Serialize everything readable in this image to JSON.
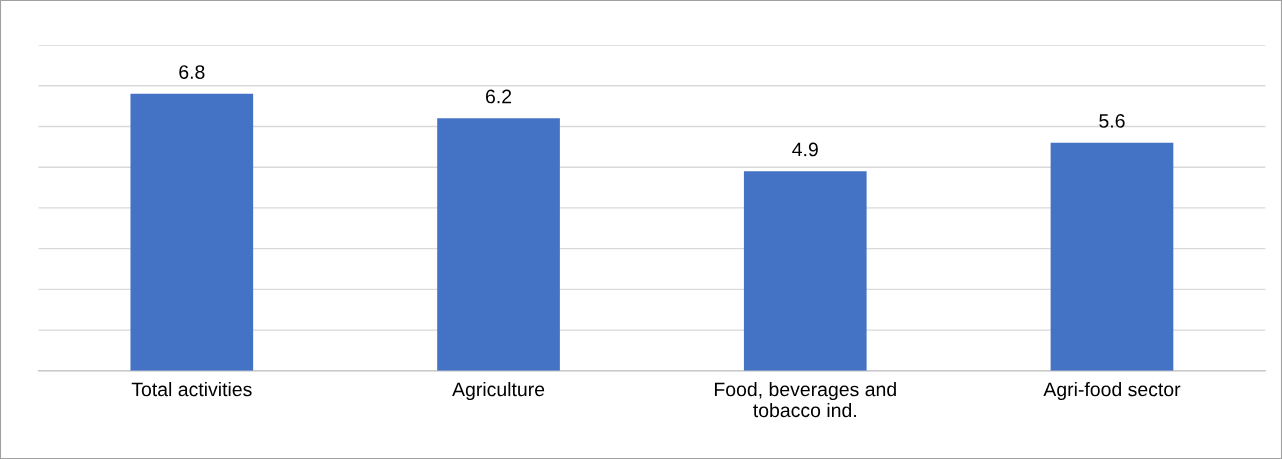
{
  "chart_data": {
    "type": "bar",
    "categories": [
      "Total activities",
      "Agriculture",
      "Food, beverages and\ntobacco ind.",
      "Agri-food sector"
    ],
    "values": [
      6.8,
      6.2,
      4.9,
      5.6
    ],
    "color": "#4472c4",
    "ylim": [
      0,
      8
    ],
    "yticks": [
      {
        "value": 0,
        "label": null
      },
      {
        "value": 1,
        "label": null
      },
      {
        "value": 2,
        "label": null
      },
      {
        "value": 3,
        "label": null
      },
      {
        "value": 4,
        "label": null
      },
      {
        "value": 5,
        "label": null
      },
      {
        "value": 6,
        "label": null
      },
      {
        "value": 7,
        "label": null
      },
      {
        "value": 8,
        "label": null
      }
    ],
    "tick_labels": "x",
    "grid": "y",
    "data_labels": true,
    "legend": false
  }
}
